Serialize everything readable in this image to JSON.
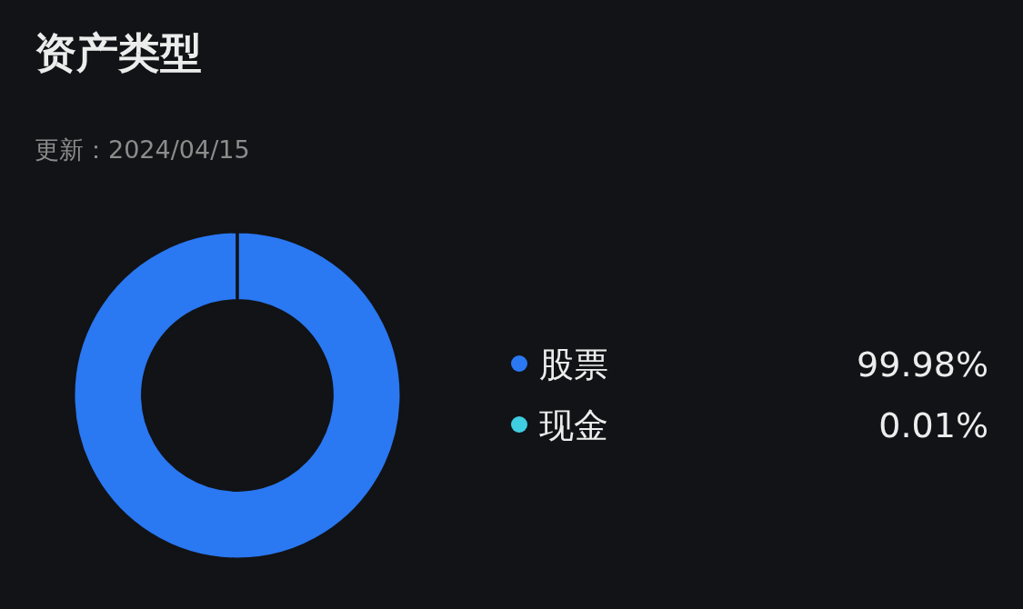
{
  "chart_data": {
    "type": "donut",
    "title": "资产类型",
    "subtitle": "更新：2024/04/15",
    "categories": [
      "股票",
      "现金"
    ],
    "values": [
      99.98,
      0.01
    ],
    "colors": [
      "#2a78f2",
      "#3fcde2"
    ],
    "value_labels": [
      "99.98%",
      "0.01%"
    ],
    "legend": "right"
  }
}
